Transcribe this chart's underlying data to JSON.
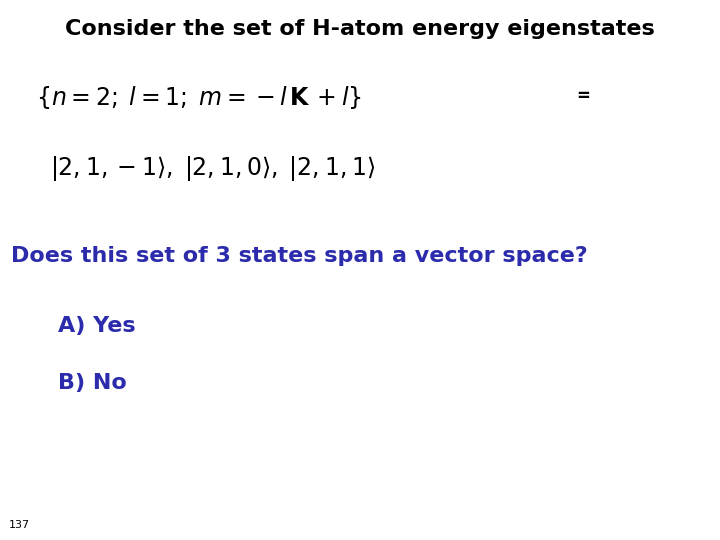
{
  "background_color": "#ffffff",
  "title_text": "Consider the set of H-atom energy eigenstates",
  "title_color": "#000000",
  "title_fontsize": 16,
  "set_line": "$\\{n = 2;\\; l = 1;\\; m = -l\\,\\mathbf{K}\\, +l\\}$",
  "equals_text": "=",
  "bra_ket_line": "$|2, 1, -1\\rangle,\\; |2, 1, 0\\rangle,\\; |2, 1, 1\\rangle$",
  "question_text": "Does this set of 3 states span a vector space?",
  "question_color": "#2b2bab",
  "question_fontsize": 16,
  "option_a": "A) Yes",
  "option_b": "B) No",
  "option_color": "#2b2bab",
  "option_fontsize": 16,
  "slide_number": "137",
  "slide_number_fontsize": 8,
  "math_fontsize": 17,
  "equals_fontsize": 12
}
